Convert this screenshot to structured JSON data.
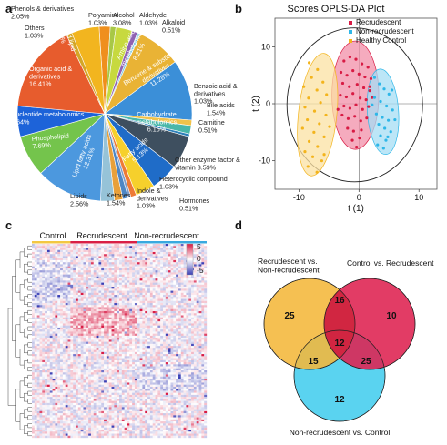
{
  "panels": {
    "a": "a",
    "b": "b",
    "c": "c",
    "d": "d"
  },
  "chart_data": [
    {
      "type": "pie",
      "panel": "a",
      "slices": [
        {
          "label": "Phenols & derivatives",
          "value": 2.05,
          "color": "#ef8f1d"
        },
        {
          "label": "Polyamine",
          "value": 1.03,
          "color": "#a8c846"
        },
        {
          "label": "Alcohol",
          "value": 3.08,
          "color": "#c7d93e"
        },
        {
          "label": "Aldehyde",
          "value": 1.03,
          "color": "#8f62b3"
        },
        {
          "label": "Alkaloid",
          "value": 0.51,
          "color": "#7bc7e0"
        },
        {
          "label": "Amino acid metabolomics",
          "value": 8.21,
          "color": "#e9b335"
        },
        {
          "label": "Benzene & substituted derivatives",
          "value": 11.28,
          "color": "#3b8fd8"
        },
        {
          "label": "Benzoic acid & derivatives",
          "value": 1.03,
          "color": "#f0c24a"
        },
        {
          "label": "Bile acids",
          "value": 1.54,
          "color": "#49b7a9"
        },
        {
          "label": "Carnitine",
          "value": 0.51,
          "color": "#2d7fb8"
        },
        {
          "label": "Carbohydrate metabolomics",
          "value": 6.15,
          "color": "#3e4f5f"
        },
        {
          "label": "Fatty acids",
          "value": 5.13,
          "color": "#1f6cc8"
        },
        {
          "label": "Other enzyme factor & vitamin",
          "value": 3.59,
          "color": "#f6d02c"
        },
        {
          "label": "Heterocyclic compound",
          "value": 1.03,
          "color": "#ee7a36"
        },
        {
          "label": "Hormones",
          "value": 0.51,
          "color": "#7e9cc9"
        },
        {
          "label": "Indole & derivatives",
          "value": 1.03,
          "color": "#4d86c4"
        },
        {
          "label": "Ketones",
          "value": 1.54,
          "color": "#e8a03a"
        },
        {
          "label": "Lipids",
          "value": 2.56,
          "color": "#96c3d8"
        },
        {
          "label": "Lipid fatty acids",
          "value": 12.31,
          "color": "#4c98de"
        },
        {
          "label": "Phospholipid",
          "value": 7.69,
          "color": "#74c44c"
        },
        {
          "label": "Nucleotide metabolomics",
          "value": 5.64,
          "color": "#1d63d9"
        },
        {
          "label": "Organic acid & derivatives",
          "value": 16.41,
          "color": "#e75c2d"
        },
        {
          "label": "Others",
          "value": 1.03,
          "color": "#d4a628"
        },
        {
          "label": "Oxidized lipid",
          "value": 5.13,
          "color": "#f2b51f"
        }
      ],
      "labels": [
        {
          "id": "phenols",
          "lines": [
            "Phenols & derivatives",
            "2.05%"
          ],
          "color": "#222222"
        },
        {
          "id": "polyamine",
          "lines": [
            "Polyamine",
            "1.03%"
          ],
          "color": "#222222"
        },
        {
          "id": "alcohol",
          "lines": [
            "Alcohol",
            "3.08%"
          ],
          "color": "#222222"
        },
        {
          "id": "aldehyde",
          "lines": [
            "Aldehyde",
            "1.03%"
          ],
          "color": "#222222"
        },
        {
          "id": "alkaloid",
          "lines": [
            "Alkaloid",
            "0.51%"
          ],
          "color": "#222222"
        },
        {
          "id": "amino",
          "lines": [
            "Amino acid",
            "metabolomics",
            "8.21%"
          ],
          "color": "#ffffff"
        },
        {
          "id": "benzene",
          "lines": [
            "Benzene & substituted",
            "derivatives",
            "11.28%"
          ],
          "color": "#ffffff"
        },
        {
          "id": "benzoic",
          "lines": [
            "Benzoic acid &",
            "derivatives",
            "1.03%"
          ],
          "color": "#222222"
        },
        {
          "id": "bile",
          "lines": [
            "Bile acids",
            "1.54%"
          ],
          "color": "#222222"
        },
        {
          "id": "carnitine",
          "lines": [
            "Carnitine",
            "0.51%"
          ],
          "color": "#222222"
        },
        {
          "id": "carbo",
          "lines": [
            "Carbohydrate",
            "metabolomics",
            "6.15%"
          ],
          "color": "#ffffff"
        },
        {
          "id": "fatty",
          "lines": [
            "Fatty acids",
            "5.13%"
          ],
          "color": "#ffffff"
        },
        {
          "id": "enzyme",
          "lines": [
            "Other enzyme factor &",
            "vitamin  3.59%"
          ],
          "color": "#222222"
        },
        {
          "id": "hetero",
          "lines": [
            "Heterocyclic compound",
            "1.03%"
          ],
          "color": "#222222"
        },
        {
          "id": "hormones",
          "lines": [
            "Hormones",
            "0.51%"
          ],
          "color": "#222222"
        },
        {
          "id": "indole",
          "lines": [
            "Indole &",
            "derivatives",
            "1.03%"
          ],
          "color": "#222222"
        },
        {
          "id": "ketones",
          "lines": [
            "Ketones",
            "1.54%"
          ],
          "color": "#222222"
        },
        {
          "id": "lipids",
          "lines": [
            "Lipids",
            "2.56%"
          ],
          "color": "#222222"
        },
        {
          "id": "lipidfa",
          "lines": [
            "Lipid fatty acids",
            "12.31%"
          ],
          "color": "#ffffff"
        },
        {
          "id": "phospho",
          "lines": [
            "Phospholipid",
            "7.69%"
          ],
          "color": "#ffffff"
        },
        {
          "id": "nucleo",
          "lines": [
            "Nucleotide metabolomics",
            "5.64%"
          ],
          "color": "#ffffff"
        },
        {
          "id": "organic",
          "lines": [
            "Organic acid &",
            "derivatives",
            "16.41%"
          ],
          "color": "#ffffff"
        },
        {
          "id": "others",
          "lines": [
            "Others",
            "1.03%"
          ],
          "color": "#222222"
        },
        {
          "id": "oxidized",
          "lines": [
            "Oxidized lipid",
            "5.13%"
          ],
          "color": "#ffffff"
        }
      ]
    },
    {
      "type": "scatter",
      "panel": "b",
      "title": "Scores OPLS-DA Plot",
      "xlabel": "t (1)",
      "ylabel": "t (2)",
      "xlim": [
        -14,
        13
      ],
      "ylim": [
        -15,
        15
      ],
      "xticks": [
        -10,
        0,
        10
      ],
      "yticks": [
        -10,
        0,
        10
      ],
      "xticklabels": [
        "-10",
        "0",
        "10"
      ],
      "yticklabels": [
        "-10",
        "0",
        "10"
      ],
      "legend_position": "top-right",
      "series": [
        {
          "name": "Recrudescent",
          "color": "#d81b44",
          "fill": "#f18fa8",
          "ellipse": {
            "cx": -0.6,
            "cy": 1.5,
            "rx": 3.9,
            "ry": 9.5
          },
          "points": [
            [
              -2.5,
              7.5
            ],
            [
              -1.5,
              8.2
            ],
            [
              -0.5,
              7.8
            ],
            [
              0.5,
              7.0
            ],
            [
              1.5,
              6.4
            ],
            [
              -3.0,
              5.5
            ],
            [
              -2.0,
              5.0
            ],
            [
              -1.0,
              5.8
            ],
            [
              0.0,
              5.2
            ],
            [
              1.0,
              4.7
            ],
            [
              2.0,
              4.4
            ],
            [
              -2.7,
              3.6
            ],
            [
              -1.6,
              3.0
            ],
            [
              -0.3,
              3.4
            ],
            [
              0.8,
              2.8
            ],
            [
              1.8,
              2.3
            ],
            [
              -3.1,
              1.5
            ],
            [
              -2.1,
              1.2
            ],
            [
              -1.0,
              1.8
            ],
            [
              0.2,
              1.0
            ],
            [
              1.2,
              0.7
            ],
            [
              2.2,
              1.1
            ],
            [
              -2.5,
              -0.4
            ],
            [
              -1.5,
              -0.8
            ],
            [
              -0.5,
              -0.2
            ],
            [
              0.6,
              -1.0
            ],
            [
              1.6,
              -0.5
            ],
            [
              -2.8,
              -2.0
            ],
            [
              -1.8,
              -2.6
            ],
            [
              -0.7,
              -2.2
            ],
            [
              0.3,
              -3.0
            ],
            [
              1.3,
              -2.5
            ],
            [
              -1.9,
              -4.3
            ],
            [
              -0.9,
              -4.8
            ],
            [
              0.4,
              -4.6
            ],
            [
              -1.1,
              -6.4
            ],
            [
              0.1,
              -6.0
            ],
            [
              -0.4,
              -7.6
            ],
            [
              1.8,
              3.0
            ],
            [
              -3.5,
              -1.0
            ]
          ]
        },
        {
          "name": "Non-recrudescent",
          "color": "#2eb7e8",
          "fill": "#a6def4",
          "ellipse": {
            "cx": 4.0,
            "cy": -1.4,
            "rx": 2.6,
            "ry": 7.5
          },
          "points": [
            [
              2.6,
              4.6
            ],
            [
              3.4,
              3.5
            ],
            [
              4.2,
              2.6
            ],
            [
              5.0,
              1.7
            ],
            [
              2.6,
              1.1
            ],
            [
              3.6,
              0.4
            ],
            [
              4.6,
              -0.4
            ],
            [
              5.6,
              -1.1
            ],
            [
              2.9,
              -1.8
            ],
            [
              3.9,
              -2.4
            ],
            [
              4.9,
              -2.9
            ],
            [
              3.3,
              -3.6
            ],
            [
              4.3,
              -4.3
            ],
            [
              5.3,
              -4.9
            ],
            [
              3.6,
              -5.6
            ],
            [
              4.5,
              -6.4
            ],
            [
              3.1,
              -7.2
            ],
            [
              4.1,
              -7.8
            ],
            [
              5.5,
              2.4
            ],
            [
              2.2,
              -0.2
            ],
            [
              6.0,
              -2.8
            ],
            [
              4.8,
              -5.8
            ]
          ]
        },
        {
          "name": "Healthy Control",
          "color": "#f3b41c",
          "fill": "#fbe2a3",
          "ellipse": {
            "cx": -6.9,
            "cy": -1.9,
            "rx": 3.2,
            "ry": 10.8
          },
          "points": [
            [
              -8.3,
              7.2
            ],
            [
              -6.9,
              6.0
            ],
            [
              -7.9,
              4.6
            ],
            [
              -6.0,
              3.8
            ],
            [
              -9.2,
              3.0
            ],
            [
              -7.0,
              2.4
            ],
            [
              -5.4,
              1.6
            ],
            [
              -8.4,
              1.0
            ],
            [
              -6.4,
              0.2
            ],
            [
              -9.0,
              -0.6
            ],
            [
              -7.4,
              -1.3
            ],
            [
              -5.5,
              -2.0
            ],
            [
              -8.6,
              -2.8
            ],
            [
              -6.6,
              -3.5
            ],
            [
              -9.4,
              -4.3
            ],
            [
              -7.5,
              -5.0
            ],
            [
              -5.8,
              -5.8
            ],
            [
              -8.3,
              -6.6
            ],
            [
              -6.9,
              -7.5
            ],
            [
              -9.0,
              -8.4
            ],
            [
              -7.7,
              -9.3
            ],
            [
              -6.2,
              -10.0
            ],
            [
              -8.5,
              -11.0
            ],
            [
              -7.0,
              -12.0
            ],
            [
              -5.8,
              -8.9
            ],
            [
              -4.9,
              -4.0
            ]
          ]
        }
      ],
      "outer_ellipse": {
        "cx": -0.7,
        "cy": -0.2,
        "rx": 11.3,
        "ry": 13.5
      }
    },
    {
      "type": "heatmap",
      "panel": "c",
      "groups": [
        "Control",
        "Recrudescent",
        "Non-recrudescent"
      ],
      "group_colors": [
        "#f3c742",
        "#d92046",
        "#3aa9df"
      ],
      "colorbar": {
        "ticks": [
          5,
          0,
          -5
        ],
        "tick_labels": [
          "5",
          "0",
          "-5"
        ],
        "high": "#d81b44",
        "mid": "#ffffff",
        "low": "#3a3fb5"
      },
      "rows": 95,
      "cols": 68,
      "group_cols": [
        15,
        26,
        27
      ]
    },
    {
      "type": "venn",
      "panel": "d",
      "sets": [
        {
          "name_lines": [
            "Recrudescent vs.",
            "Non-recrudescent"
          ],
          "color": "#f4b73a"
        },
        {
          "name_lines": [
            "Control vs. Recrudescent"
          ],
          "color": "#de2150"
        },
        {
          "name_lines": [
            "Non-recrudescent vs. Control"
          ],
          "color": "#43cdee"
        }
      ],
      "regions": {
        "a_only": 25,
        "b_only": 10,
        "c_only": 12,
        "ab": 16,
        "ac": 15,
        "bc": 25,
        "abc": 12
      }
    }
  ]
}
